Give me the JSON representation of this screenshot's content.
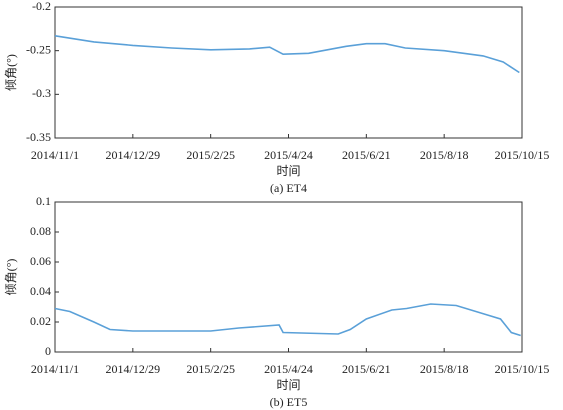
{
  "chart_data": [
    {
      "type": "line",
      "caption": "(a) ET4",
      "xlabel": "时间",
      "ylabel": "倾角(°)",
      "xlim": [
        "2014-11-01",
        "2015-10-15"
      ],
      "xticks": [
        {
          "value": "2014-11-01",
          "label": "2014/11/1"
        },
        {
          "value": "2014-12-29",
          "label": "2014/12/29"
        },
        {
          "value": "2015-02-25",
          "label": "2015/2/25"
        },
        {
          "value": "2015-04-24",
          "label": "2015/4/24"
        },
        {
          "value": "2015-06-21",
          "label": "2015/6/21"
        },
        {
          "value": "2015-08-18",
          "label": "2015/8/18"
        },
        {
          "value": "2015-10-15",
          "label": "2015/10/15"
        }
      ],
      "ylim": [
        -0.35,
        -0.2
      ],
      "yticks": [
        -0.35,
        -0.3,
        -0.25,
        -0.2
      ],
      "x": [
        "2014-11-01",
        "2014-11-30",
        "2014-12-29",
        "2015-01-27",
        "2015-02-25",
        "2015-03-26",
        "2015-04-10",
        "2015-04-20",
        "2015-05-09",
        "2015-05-23",
        "2015-06-06",
        "2015-06-21",
        "2015-07-05",
        "2015-07-20",
        "2015-08-18",
        "2015-09-16",
        "2015-10-01",
        "2015-10-13"
      ],
      "series": [
        {
          "name": "ET4",
          "color": "#5aa0d8",
          "values": [
            -0.233,
            -0.24,
            -0.244,
            -0.247,
            -0.249,
            -0.248,
            -0.246,
            -0.254,
            -0.253,
            -0.249,
            -0.245,
            -0.242,
            -0.242,
            -0.247,
            -0.25,
            -0.256,
            -0.263,
            -0.275
          ]
        }
      ]
    },
    {
      "type": "line",
      "caption": "(b) ET5",
      "xlabel": "时间",
      "ylabel": "倾角(°)",
      "xlim": [
        "2014-11-01",
        "2015-10-15"
      ],
      "xticks": [
        {
          "value": "2014-11-01",
          "label": "2014/11/1"
        },
        {
          "value": "2014-12-29",
          "label": "2014/12/29"
        },
        {
          "value": "2015-02-25",
          "label": "2015/2/25"
        },
        {
          "value": "2015-04-24",
          "label": "2015/4/24"
        },
        {
          "value": "2015-06-21",
          "label": "2015/6/21"
        },
        {
          "value": "2015-08-18",
          "label": "2015/8/18"
        },
        {
          "value": "2015-10-15",
          "label": "2015/10/15"
        }
      ],
      "ylim": [
        0,
        0.1
      ],
      "yticks": [
        0,
        0.02,
        0.04,
        0.06,
        0.08,
        0.1
      ],
      "x": [
        "2014-11-01",
        "2014-11-12",
        "2014-11-30",
        "2014-12-12",
        "2014-12-29",
        "2015-02-25",
        "2015-03-18",
        "2015-04-17",
        "2015-04-20",
        "2015-05-31",
        "2015-06-09",
        "2015-06-21",
        "2015-07-10",
        "2015-07-21",
        "2015-08-08",
        "2015-08-27",
        "2015-09-18",
        "2015-09-29",
        "2015-10-07",
        "2015-10-14"
      ],
      "series": [
        {
          "name": "ET5",
          "color": "#5aa0d8",
          "values": [
            0.029,
            0.027,
            0.02,
            0.015,
            0.014,
            0.014,
            0.016,
            0.018,
            0.013,
            0.012,
            0.015,
            0.022,
            0.028,
            0.029,
            0.032,
            0.031,
            0.025,
            0.022,
            0.013,
            0.011
          ]
        }
      ]
    }
  ]
}
